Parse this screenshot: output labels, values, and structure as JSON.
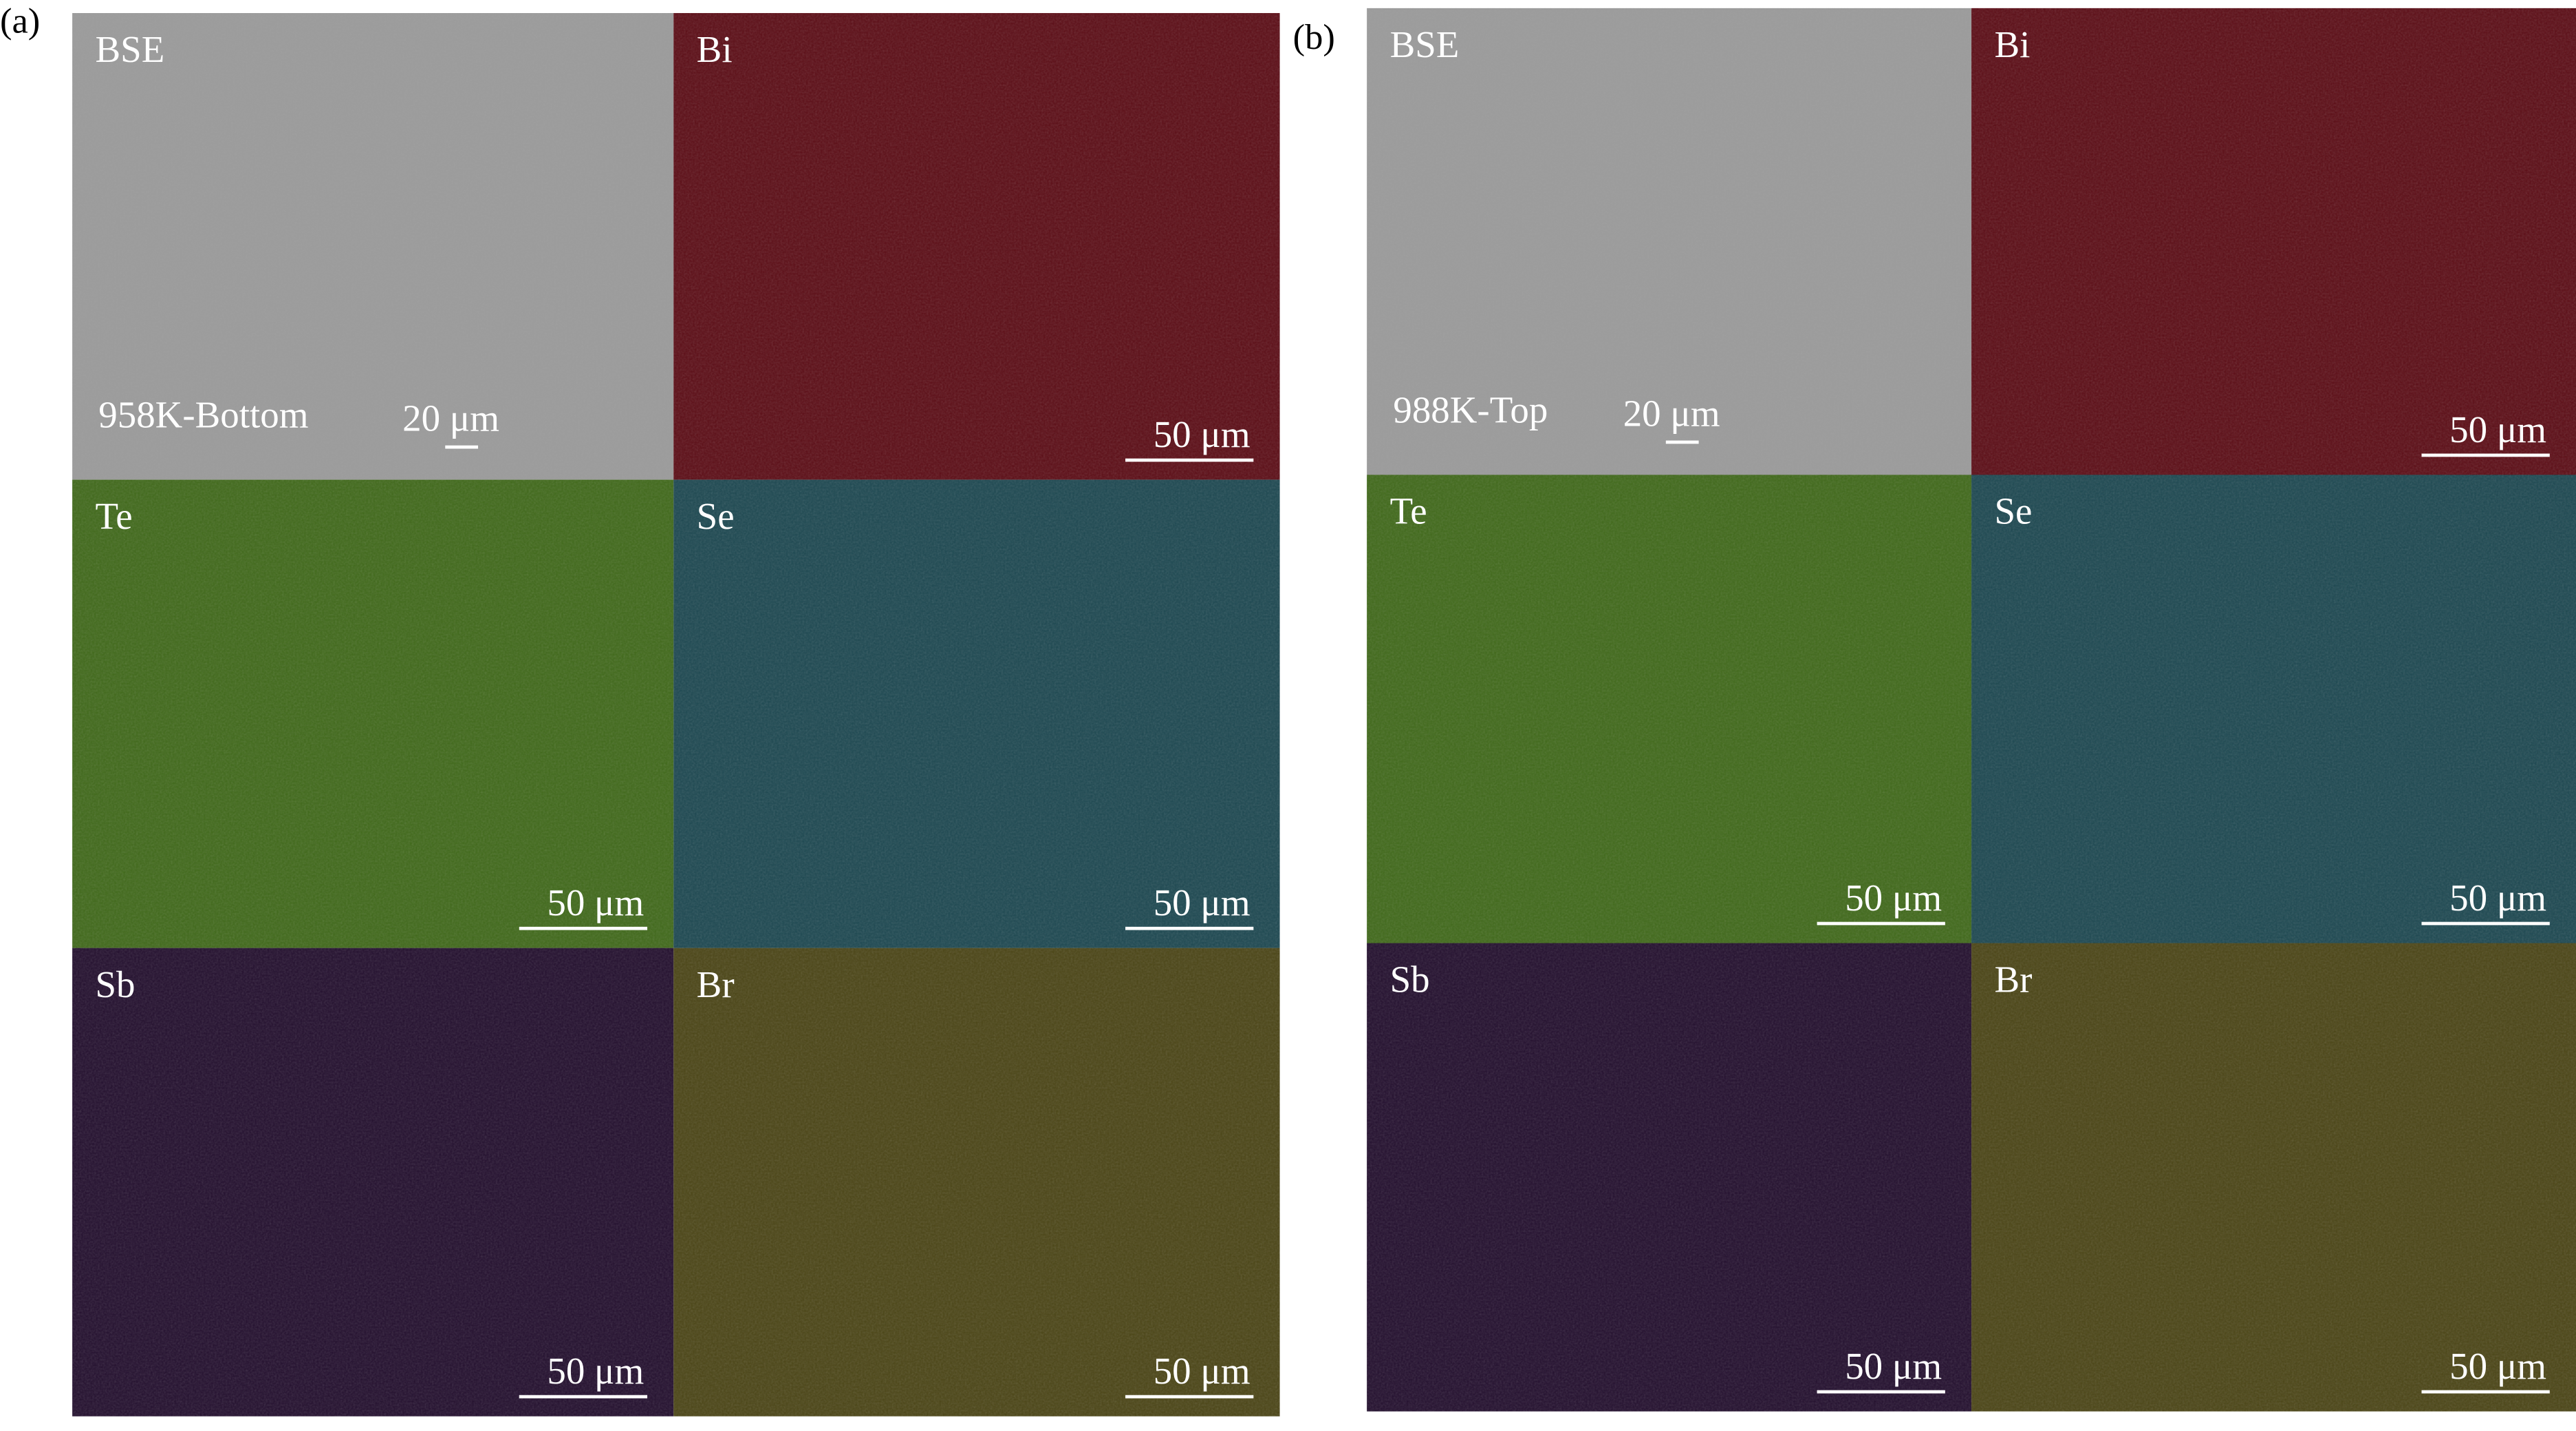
{
  "panels": [
    {
      "label": "(a)",
      "tiles": [
        {
          "element": "BSE",
          "caption": "958K-Bottom",
          "scale_bar": "20 μm"
        },
        {
          "element": "Bi",
          "scale_bar": "50 μm"
        },
        {
          "element": "Te",
          "scale_bar": "50 μm"
        },
        {
          "element": "Se",
          "scale_bar": "50 μm"
        },
        {
          "element": "Sb",
          "scale_bar": "50 μm"
        },
        {
          "element": "Br",
          "scale_bar": "50 μm"
        }
      ]
    },
    {
      "label": "(b)",
      "tiles": [
        {
          "element": "BSE",
          "caption": "988K-Top",
          "scale_bar": "20 μm"
        },
        {
          "element": "Bi",
          "scale_bar": "50 μm"
        },
        {
          "element": "Te",
          "scale_bar": "50 μm"
        },
        {
          "element": "Se",
          "scale_bar": "50 μm"
        },
        {
          "element": "Sb",
          "scale_bar": "50 μm"
        },
        {
          "element": "Br",
          "scale_bar": "50 μm"
        }
      ]
    }
  ]
}
